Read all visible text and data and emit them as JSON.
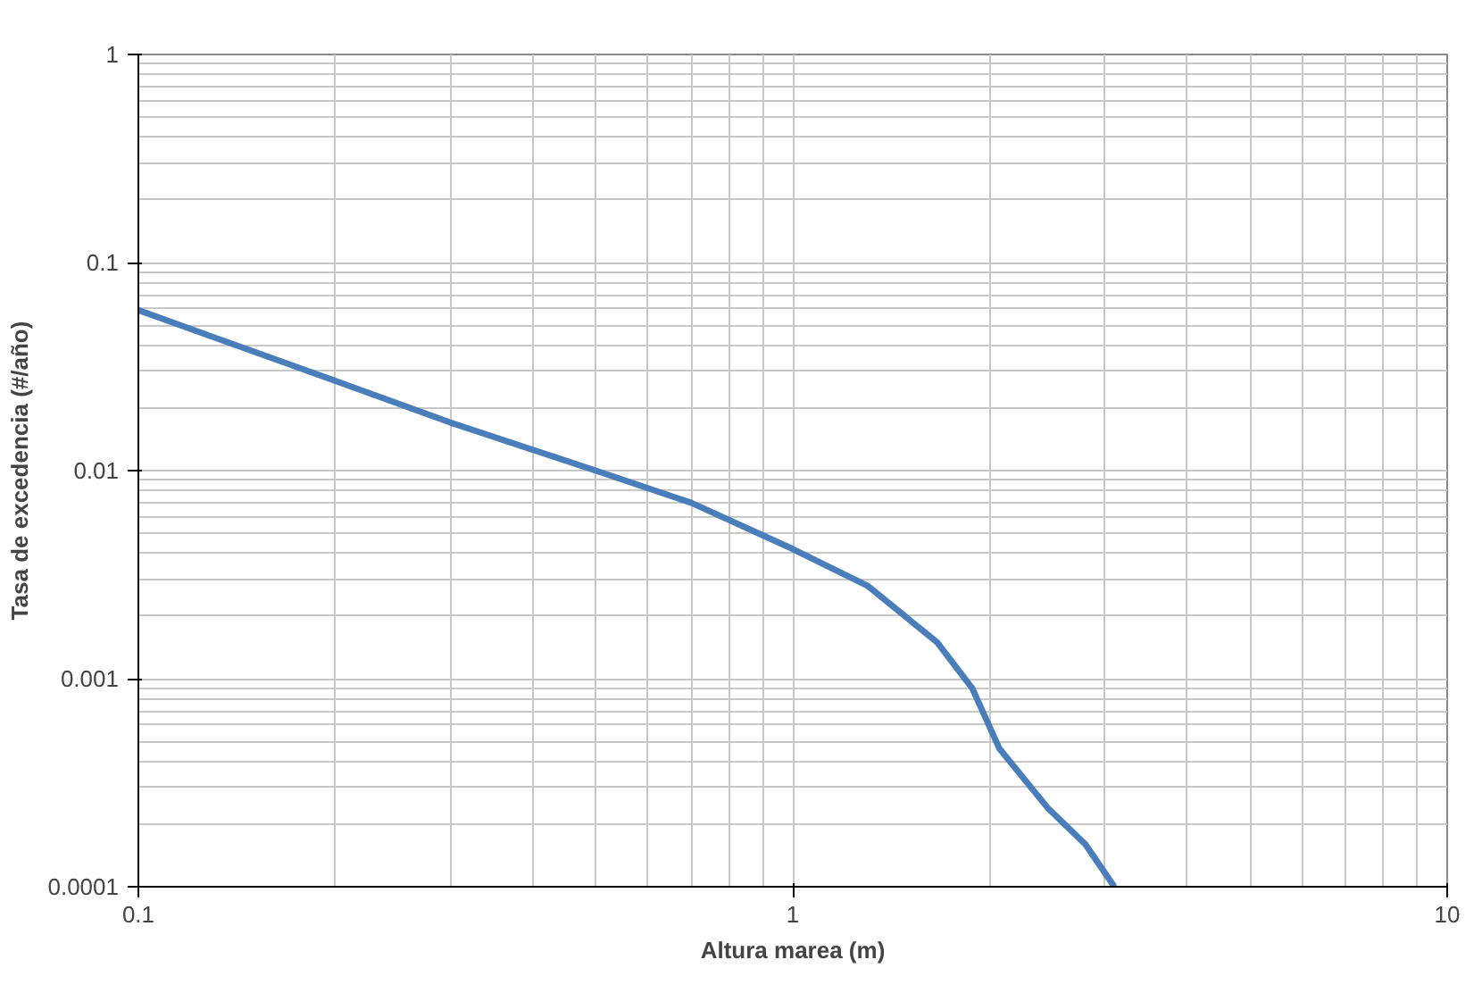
{
  "chart_data": {
    "type": "line",
    "xlabel": "Altura marea (m)",
    "ylabel": "Tasa de excedencia (#/año)",
    "x": [
      0.1,
      0.2,
      0.3,
      0.5,
      0.7,
      1.0,
      1.3,
      1.66,
      1.88,
      2.07,
      2.45,
      2.8,
      3.1
    ],
    "series": [
      {
        "color": "#4a7ebb",
        "values": [
          0.059,
          0.027,
          0.017,
          0.01,
          0.007,
          0.0042,
          0.0028,
          0.0015,
          0.0009,
          0.00046,
          0.00024,
          0.00016,
          0.0001
        ]
      }
    ],
    "log": "xy",
    "grid": true,
    "marker": "none",
    "line_style": "solid",
    "xlim": [
      0.1,
      10
    ],
    "ylim": [
      0.0001,
      1
    ],
    "xticks": [
      0.1,
      1,
      10
    ],
    "yticks": [
      0.0001,
      0.001,
      0.01,
      0.1,
      1
    ]
  }
}
